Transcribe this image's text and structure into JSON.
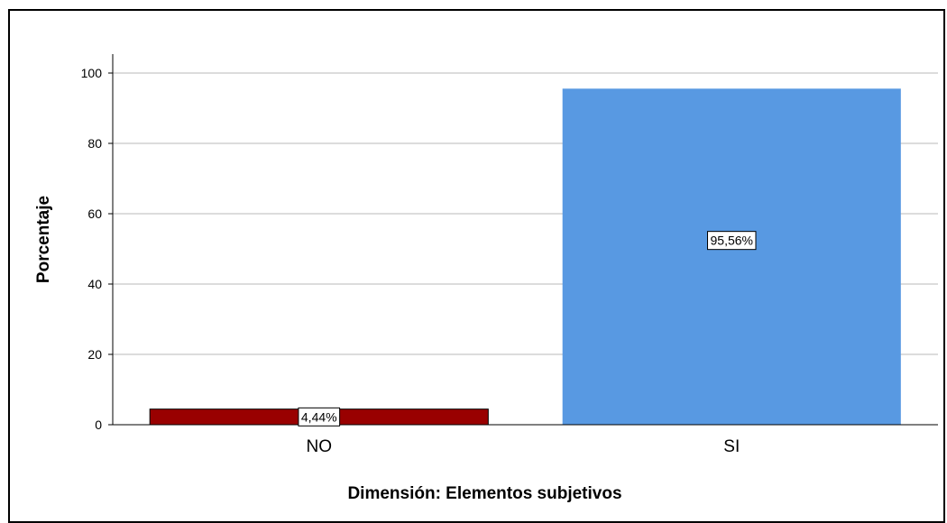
{
  "chart_data": {
    "type": "bar",
    "categories": [
      "NO",
      "SI"
    ],
    "values": [
      4.44,
      95.56
    ],
    "data_labels": [
      "4,44%",
      "95,56%"
    ],
    "colors": [
      "#990000",
      "#5899E2"
    ],
    "title": "",
    "xlabel": "Dimensión: Elementos subjetivos",
    "ylabel": "Porcentaje",
    "ylim": [
      0,
      100
    ],
    "yticks": [
      0,
      20,
      40,
      60,
      80,
      100
    ],
    "grid": true,
    "legend": "none"
  }
}
